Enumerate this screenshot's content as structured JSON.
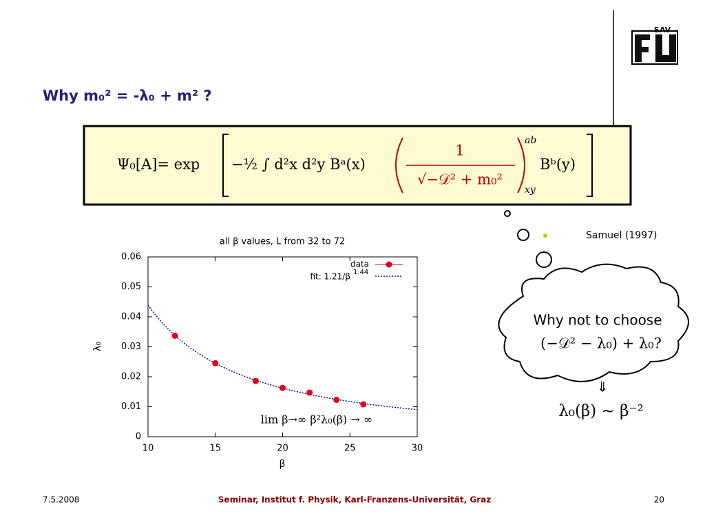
{
  "slide": {
    "title": "Why m₀² = -λ₀ + m² ?",
    "logo": "SAV",
    "formula": {
      "lhs": "Ψ₀[A]= exp",
      "integral": "−½ ∫ d²x d²y Bᵃ(x)",
      "numerator": "1",
      "denominator": "√−𝒟² + m₀²",
      "sup": "ab",
      "sub": "xy",
      "rhs": "Bᵇ(y)"
    },
    "citation": "Samuel (1997)",
    "bubble": {
      "line1": "Why not to choose",
      "line2": "(−𝒟² − λ₀) + λ₀?",
      "arrow": "⇓",
      "result": "λ₀(β) ∼ β⁻²"
    },
    "footer": {
      "date": "7.5.2008",
      "center": "Seminar, Institut f. Physik, Karl-Franzens-Universität, Graz",
      "page": "20"
    }
  },
  "chart_data": {
    "type": "scatter",
    "title": "all β values, L from 32 to 72",
    "x_label": "β",
    "y_label": "λ₀",
    "xlim": [
      10,
      30
    ],
    "xticks": [
      10,
      15,
      20,
      25,
      30
    ],
    "ylim": [
      0,
      0.06
    ],
    "yticks": [
      0,
      0.01,
      0.02,
      0.03,
      0.04,
      0.05,
      0.06
    ],
    "series": [
      {
        "name": "data",
        "color": "#e0001b",
        "x": [
          12,
          15,
          18,
          20,
          22,
          24,
          26
        ],
        "values": [
          0.0337,
          0.0245,
          0.0186,
          0.0163,
          0.0147,
          0.0123,
          0.0108
        ]
      }
    ],
    "fit": {
      "name": "fit: 1.21/β",
      "exponent_label": "1.44",
      "a": 1.21,
      "b": 1.44,
      "color": "#0000cc"
    },
    "annotation": "lim β→∞ β²λ₀(β) → ∞"
  }
}
